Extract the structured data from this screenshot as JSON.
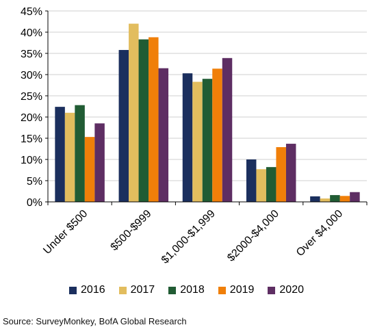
{
  "chart_data": {
    "type": "bar",
    "categories": [
      "Under $500",
      "$500-$999",
      "$1,000-$1,999",
      "$2000-$4,000",
      "Over $4,000"
    ],
    "series": [
      {
        "name": "2016",
        "color": "#1b2f5e",
        "values": [
          22.4,
          35.8,
          30.3,
          10.0,
          1.3
        ]
      },
      {
        "name": "2017",
        "color": "#e2bd5e",
        "values": [
          21.0,
          42.0,
          28.3,
          7.7,
          0.8
        ]
      },
      {
        "name": "2018",
        "color": "#215c34",
        "values": [
          22.8,
          38.3,
          29.0,
          8.2,
          1.6
        ]
      },
      {
        "name": "2019",
        "color": "#f07f09",
        "values": [
          15.3,
          38.8,
          31.4,
          12.9,
          1.4
        ]
      },
      {
        "name": "2020",
        "color": "#5e2e63",
        "values": [
          18.5,
          31.5,
          33.9,
          13.7,
          2.3
        ]
      }
    ],
    "y_ticks": [
      "0%",
      "5%",
      "10%",
      "15%",
      "20%",
      "25%",
      "30%",
      "35%",
      "40%",
      "45%"
    ],
    "ylim": [
      0,
      45
    ],
    "grid": true,
    "legend_position": "bottom"
  },
  "source": "Source: SurveyMonkey, BofA  Global Research"
}
